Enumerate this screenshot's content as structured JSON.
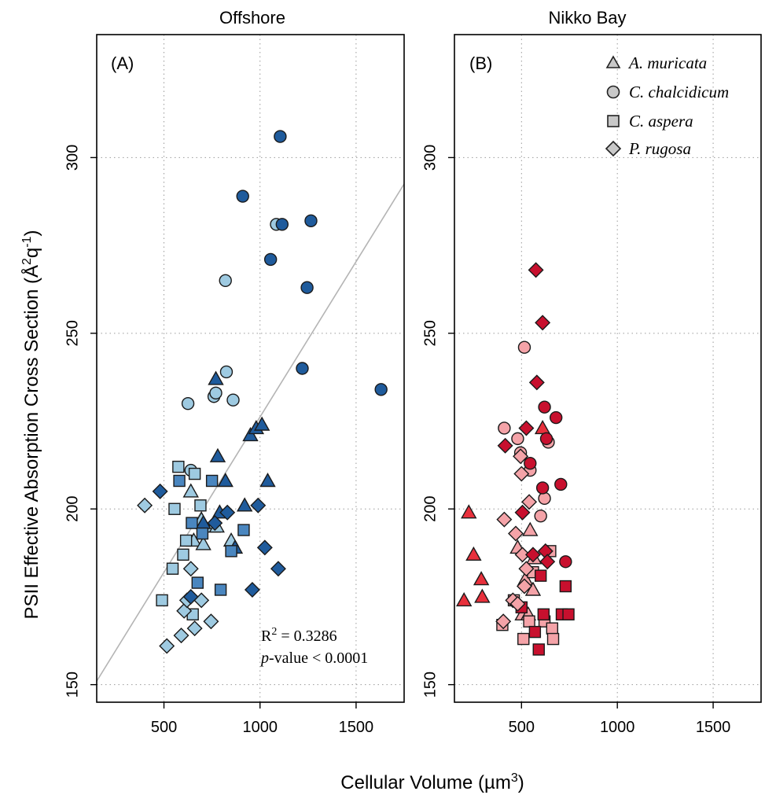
{
  "chart_data": [
    {
      "panel_label": "(A)",
      "title": "Offshore",
      "type": "scatter",
      "xlabel": "Cellular Volume (µm",
      "xlabel_sup": "3",
      "xlabel_end": ")",
      "ylabel": "PSII Effective Absorption Cross Section (Å",
      "ylabel_sup1": "2",
      "ylabel_mid": "q",
      "ylabel_sup2": "-1",
      "ylabel_end": ")",
      "xlim": [
        150,
        1750
      ],
      "ylim": [
        145,
        335
      ],
      "x_ticks": [
        500,
        1000,
        1500
      ],
      "x_tick_labels": [
        "500",
        "1000",
        "1500"
      ],
      "y_ticks": [
        150,
        200,
        250,
        300
      ],
      "y_tick_labels": [
        "150",
        "200",
        "250",
        "300"
      ],
      "grid": true,
      "colors": {
        "light": "#9ecae1",
        "mid": "#4a86bf",
        "dark": "#1f5b9c"
      },
      "regression": {
        "x": [
          150,
          1750
        ],
        "y": [
          151,
          292.5
        ],
        "color": "#b4b4b4"
      },
      "annotation": {
        "r2_prefix": "R",
        "r2_sup": "2",
        "r2_text": " = 0.3286",
        "p_italic": "p",
        "p_text": "-value < 0.0001"
      },
      "series": [
        {
          "name": "A. muricata",
          "marker": "triangle",
          "points": [
            [
              640,
              205,
              "light"
            ],
            [
              655,
              191,
              "light"
            ],
            [
              705,
              190,
              "light"
            ],
            [
              755,
              195,
              "light"
            ],
            [
              695,
              197,
              "light"
            ],
            [
              775,
              195,
              "light"
            ],
            [
              850,
              191,
              "light"
            ],
            [
              770,
              237,
              "dark"
            ],
            [
              780,
              215,
              "dark"
            ],
            [
              820,
              208,
              "dark"
            ],
            [
              870,
              189,
              "dark"
            ],
            [
              920,
              201,
              "dark"
            ],
            [
              950,
              221,
              "dark"
            ],
            [
              980,
              223,
              "dark"
            ],
            [
              1010,
              224,
              "dark"
            ],
            [
              1040,
              208,
              "dark"
            ],
            [
              790,
              199,
              "dark"
            ],
            [
              705,
              196,
              "dark"
            ]
          ]
        },
        {
          "name": "C. chalcidicum",
          "marker": "circle",
          "points": [
            [
              625,
              230,
              "light"
            ],
            [
              640,
              211,
              "light"
            ],
            [
              760,
              232,
              "light"
            ],
            [
              770,
              233,
              "light"
            ],
            [
              820,
              265,
              "light"
            ],
            [
              825,
              239,
              "light"
            ],
            [
              860,
              231,
              "light"
            ],
            [
              1085,
              281,
              "light"
            ],
            [
              910,
              289,
              "dark"
            ],
            [
              1055,
              271,
              "dark"
            ],
            [
              1105,
              306,
              "dark"
            ],
            [
              1115,
              281,
              "dark"
            ],
            [
              1220,
              240,
              "dark"
            ],
            [
              1245,
              263,
              "dark"
            ],
            [
              1265,
              282,
              "dark"
            ],
            [
              1630,
              234,
              "dark"
            ]
          ]
        },
        {
          "name": "C. aspera",
          "marker": "square",
          "points": [
            [
              490,
              174,
              "light"
            ],
            [
              545,
              183,
              "light"
            ],
            [
              555,
              200,
              "light"
            ],
            [
              575,
              212,
              "light"
            ],
            [
              600,
              187,
              "light"
            ],
            [
              615,
              191,
              "light"
            ],
            [
              650,
              170,
              "light"
            ],
            [
              660,
              210,
              "light"
            ],
            [
              690,
              201,
              "light"
            ],
            [
              580,
              208,
              "mid"
            ],
            [
              645,
              196,
              "mid"
            ],
            [
              675,
              179,
              "mid"
            ],
            [
              700,
              193,
              "mid"
            ],
            [
              750,
              208,
              "mid"
            ],
            [
              795,
              177,
              "mid"
            ],
            [
              850,
              188,
              "mid"
            ],
            [
              915,
              194,
              "mid"
            ]
          ]
        },
        {
          "name": "P. rugosa",
          "marker": "diamond",
          "points": [
            [
              400,
              201,
              "light"
            ],
            [
              515,
              161,
              "light"
            ],
            [
              590,
              164,
              "light"
            ],
            [
              605,
              171,
              "light"
            ],
            [
              620,
              174,
              "light"
            ],
            [
              640,
              183,
              "light"
            ],
            [
              660,
              166,
              "light"
            ],
            [
              695,
              174,
              "light"
            ],
            [
              745,
              168,
              "light"
            ],
            [
              480,
              205,
              "dark"
            ],
            [
              640,
              175,
              "dark"
            ],
            [
              765,
              196,
              "dark"
            ],
            [
              830,
              199,
              "dark"
            ],
            [
              960,
              177,
              "dark"
            ],
            [
              990,
              201,
              "dark"
            ],
            [
              1025,
              189,
              "dark"
            ],
            [
              1095,
              183,
              "dark"
            ]
          ]
        }
      ]
    },
    {
      "panel_label": "(B)",
      "title": "Nikko Bay",
      "type": "scatter",
      "xlabel": "",
      "xlim": [
        150,
        1750
      ],
      "ylim": [
        145,
        335
      ],
      "x_ticks": [
        500,
        1000,
        1500
      ],
      "x_tick_labels": [
        "500",
        "1000",
        "1500"
      ],
      "y_ticks": [
        150,
        200,
        250,
        300
      ],
      "y_tick_labels": [
        "150",
        "200",
        "250",
        "300"
      ],
      "grid": true,
      "colors": {
        "light": "#f4a3a8",
        "mid": "#e8303c",
        "dark": "#c8102e"
      },
      "legend": {
        "position": "top-right",
        "entries": [
          {
            "label": "A. muricata",
            "marker": "triangle"
          },
          {
            "label": "C. chalcidicum",
            "marker": "circle"
          },
          {
            "label": "C. aspera",
            "marker": "square"
          },
          {
            "label": "P. rugosa",
            "marker": "diamond"
          }
        ]
      },
      "series": [
        {
          "name": "A. muricata",
          "marker": "triangle",
          "points": [
            [
              200,
              174,
              "mid"
            ],
            [
              225,
              199,
              "mid"
            ],
            [
              250,
              187,
              "mid"
            ],
            [
              290,
              180,
              "mid"
            ],
            [
              295,
              175,
              "mid"
            ],
            [
              610,
              223,
              "mid"
            ],
            [
              480,
              189,
              "light"
            ],
            [
              505,
              170,
              "light"
            ],
            [
              520,
              180,
              "light"
            ],
            [
              535,
              170,
              "light"
            ],
            [
              545,
              194,
              "light"
            ],
            [
              560,
              177,
              "light"
            ],
            [
              565,
              186,
              "light"
            ]
          ]
        },
        {
          "name": "C. chalcidicum",
          "marker": "circle",
          "points": [
            [
              410,
              223,
              "light"
            ],
            [
              480,
              220,
              "light"
            ],
            [
              495,
              216,
              "light"
            ],
            [
              515,
              246,
              "light"
            ],
            [
              545,
              211,
              "light"
            ],
            [
              600,
              198,
              "light"
            ],
            [
              620,
              203,
              "light"
            ],
            [
              640,
              219,
              "light"
            ],
            [
              545,
              213,
              "dark"
            ],
            [
              610,
              206,
              "dark"
            ],
            [
              620,
              229,
              "dark"
            ],
            [
              630,
              220,
              "dark"
            ],
            [
              680,
              226,
              "dark"
            ],
            [
              705,
              207,
              "dark"
            ],
            [
              730,
              185,
              "dark"
            ]
          ]
        },
        {
          "name": "C. aspera",
          "marker": "square",
          "points": [
            [
              400,
              167,
              "light"
            ],
            [
              460,
              174,
              "light"
            ],
            [
              510,
              163,
              "light"
            ],
            [
              540,
              168,
              "light"
            ],
            [
              560,
              182,
              "light"
            ],
            [
              620,
              168,
              "light"
            ],
            [
              650,
              188,
              "light"
            ],
            [
              660,
              166,
              "light"
            ],
            [
              665,
              163,
              "light"
            ],
            [
              500,
              172,
              "dark"
            ],
            [
              570,
              165,
              "dark"
            ],
            [
              590,
              160,
              "dark"
            ],
            [
              600,
              181,
              "dark"
            ],
            [
              615,
              170,
              "dark"
            ],
            [
              710,
              170,
              "dark"
            ],
            [
              730,
              178,
              "dark"
            ],
            [
              745,
              170,
              "dark"
            ]
          ]
        },
        {
          "name": "P. rugosa",
          "marker": "diamond",
          "points": [
            [
              410,
              197,
              "light"
            ],
            [
              405,
              168,
              "light"
            ],
            [
              455,
              174,
              "light"
            ],
            [
              470,
              193,
              "light"
            ],
            [
              480,
              173,
              "light"
            ],
            [
              495,
              215,
              "light"
            ],
            [
              500,
              210,
              "light"
            ],
            [
              505,
              187,
              "light"
            ],
            [
              515,
              178,
              "light"
            ],
            [
              525,
              183,
              "light"
            ],
            [
              540,
              202,
              "light"
            ],
            [
              415,
              218,
              "dark"
            ],
            [
              505,
              199,
              "dark"
            ],
            [
              525,
              223,
              "dark"
            ],
            [
              560,
              187,
              "dark"
            ],
            [
              575,
              268,
              "dark"
            ],
            [
              580,
              236,
              "dark"
            ],
            [
              610,
              253,
              "dark"
            ],
            [
              625,
              188,
              "dark"
            ],
            [
              635,
              185,
              "dark"
            ]
          ]
        }
      ]
    }
  ]
}
